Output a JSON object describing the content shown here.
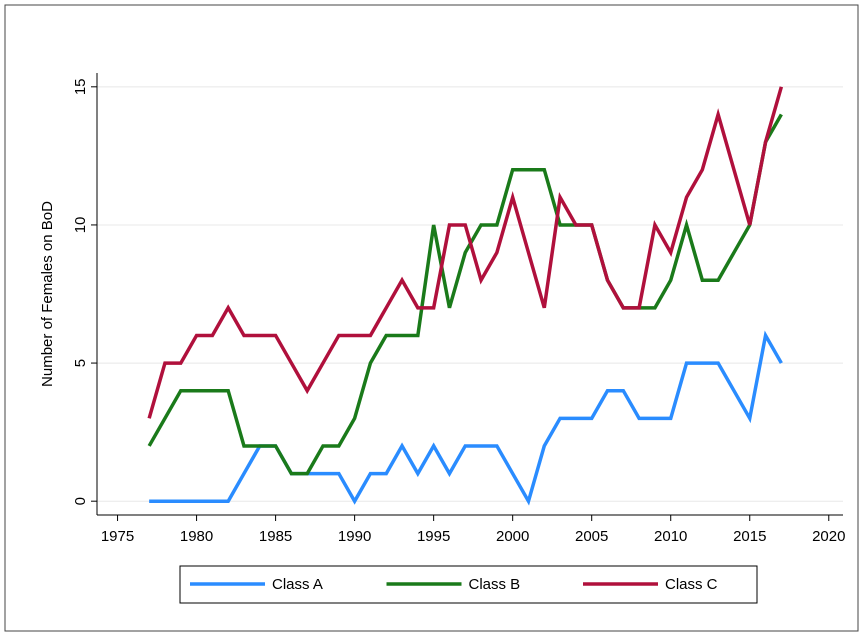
{
  "chart_data": {
    "type": "line",
    "y_label": "Number of Females on BoD",
    "x": [
      1977,
      1978,
      1979,
      1980,
      1981,
      1982,
      1983,
      1984,
      1985,
      1986,
      1987,
      1988,
      1989,
      1990,
      1991,
      1992,
      1993,
      1994,
      1995,
      1996,
      1997,
      1998,
      1999,
      2000,
      2001,
      2002,
      2003,
      2004,
      2005,
      2006,
      2007,
      2008,
      2009,
      2010,
      2011,
      2012,
      2013,
      2014,
      2015,
      2016,
      2017
    ],
    "series": [
      {
        "name": "Class A",
        "color": "#2a8cff",
        "values": [
          0,
          0,
          0,
          0,
          0,
          0,
          1,
          2,
          2,
          1,
          1,
          1,
          1,
          0,
          1,
          1,
          2,
          1,
          2,
          1,
          2,
          2,
          2,
          1,
          0,
          2,
          3,
          3,
          3,
          4,
          4,
          3,
          3,
          3,
          5,
          5,
          5,
          4,
          3,
          6,
          5
        ]
      },
      {
        "name": "Class B",
        "color": "#1a7a1a",
        "values": [
          2,
          3,
          4,
          4,
          4,
          4,
          2,
          2,
          2,
          1,
          1,
          2,
          2,
          3,
          5,
          6,
          6,
          6,
          10,
          7,
          9,
          10,
          10,
          12,
          12,
          12,
          10,
          10,
          10,
          8,
          7,
          7,
          7,
          8,
          10,
          8,
          8,
          9,
          10,
          13,
          14
        ]
      },
      {
        "name": "Class C",
        "color": "#b0103c",
        "values": [
          3,
          5,
          5,
          6,
          6,
          7,
          6,
          6,
          6,
          5,
          4,
          5,
          6,
          6,
          6,
          7,
          8,
          7,
          7,
          10,
          10,
          8,
          9,
          11,
          9,
          7,
          11,
          10,
          10,
          8,
          7,
          7,
          10,
          9,
          11,
          12,
          14,
          12,
          10,
          13,
          15
        ]
      }
    ],
    "xlim": [
      1973.7,
      2020.9
    ],
    "xticks": [
      1975,
      1980,
      1985,
      1990,
      1995,
      2000,
      2005,
      2010,
      2015,
      2020
    ],
    "ylim": [
      -0.5,
      15.5
    ],
    "yticks": [
      0,
      5,
      10,
      15
    ],
    "grid": true
  }
}
